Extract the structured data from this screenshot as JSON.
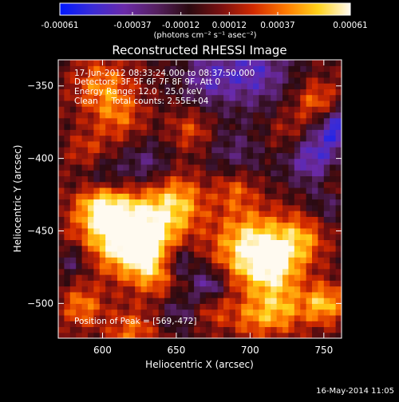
{
  "figure_title": "Reconstructed RHESSI Image",
  "colorbar": {
    "stops": [
      "#0018ff",
      "#3a2bd6",
      "#6a2aa8",
      "#552060",
      "#2a0a10",
      "#7a1010",
      "#d22a00",
      "#ff7a00",
      "#ffd21a",
      "#fffaf0"
    ],
    "tick_labels": [
      "-0.00061",
      "-0.00037",
      "-0.00012",
      "0.00012",
      "0.00037",
      "0.00061"
    ],
    "unit_label": "(photons cm⁻² s⁻¹ asec⁻²)"
  },
  "annotations": {
    "time_range": "17-Jun-2012 08:33:24.000 to 08:37:50.000",
    "detectors": "Detectors: 3F 5F 6F 7F 8F 9F, Att 0",
    "energy": "Energy Range: 12.0 - 25.0 keV",
    "clean": "Clean     Total counts: 2.55E+04",
    "peak": "Position of Peak = [569,-472]"
  },
  "footer_timestamp": "16-May-2014 11:05",
  "chart_data": {
    "type": "heatmap",
    "title": "Reconstructed RHESSI Image",
    "xlabel": "Heliocentric X (arcsec)",
    "ylabel": "Heliocentric Y (arcsec)",
    "xlim": [
      570,
      762
    ],
    "ylim": [
      -524,
      -332
    ],
    "x_ticks": [
      600,
      650,
      700,
      750
    ],
    "y_ticks": [
      -350,
      -400,
      -450,
      -500
    ],
    "value_range": [
      -0.00061,
      0.00061
    ],
    "peak": [
      569,
      -472
    ],
    "grid": false
  }
}
